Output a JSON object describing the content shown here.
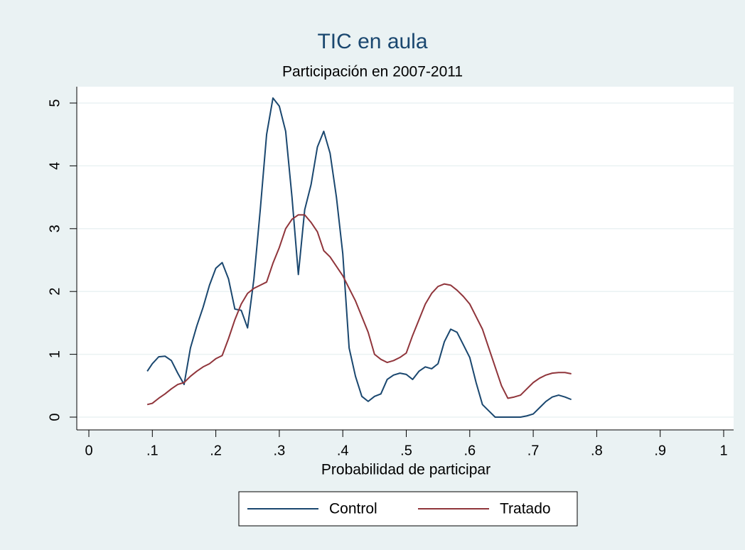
{
  "chart_data": {
    "type": "line",
    "title": "TIC en aula",
    "subtitle": "Participación en 2007-2011",
    "x_label": "Probabilidad de participar",
    "x": [
      0.092,
      0.1,
      0.11,
      0.12,
      0.13,
      0.14,
      0.15,
      0.16,
      0.17,
      0.18,
      0.19,
      0.2,
      0.21,
      0.22,
      0.23,
      0.24,
      0.25,
      0.26,
      0.27,
      0.28,
      0.29,
      0.3,
      0.31,
      0.32,
      0.33,
      0.34,
      0.35,
      0.36,
      0.37,
      0.38,
      0.39,
      0.4,
      0.41,
      0.42,
      0.43,
      0.44,
      0.45,
      0.46,
      0.47,
      0.48,
      0.49,
      0.5,
      0.51,
      0.52,
      0.53,
      0.54,
      0.55,
      0.56,
      0.57,
      0.58,
      0.59,
      0.6,
      0.61,
      0.62,
      0.63,
      0.64,
      0.65,
      0.66,
      0.67,
      0.68,
      0.69,
      0.7,
      0.71,
      0.72,
      0.73,
      0.74,
      0.75,
      0.76
    ],
    "series": [
      {
        "name": "Control",
        "color": "#1a476f",
        "values": [
          0.73,
          0.85,
          0.96,
          0.97,
          0.9,
          0.7,
          0.52,
          1.1,
          1.45,
          1.75,
          2.1,
          2.37,
          2.46,
          2.2,
          1.72,
          1.7,
          1.42,
          2.2,
          3.3,
          4.5,
          5.08,
          4.95,
          4.55,
          3.5,
          2.27,
          3.3,
          3.7,
          4.3,
          4.55,
          4.2,
          3.5,
          2.6,
          1.1,
          0.65,
          0.33,
          0.25,
          0.33,
          0.37,
          0.6,
          0.67,
          0.7,
          0.68,
          0.6,
          0.73,
          0.8,
          0.77,
          0.85,
          1.2,
          1.4,
          1.35,
          1.15,
          0.95,
          0.55,
          0.2,
          0.1,
          0,
          0,
          0,
          0,
          0,
          0.02,
          0.05,
          0.15,
          0.25,
          0.32,
          0.35,
          0.32,
          0.28
        ]
      },
      {
        "name": "Tratado",
        "color": "#90353b",
        "values": [
          0.2,
          0.22,
          0.3,
          0.37,
          0.45,
          0.52,
          0.55,
          0.65,
          0.73,
          0.8,
          0.85,
          0.93,
          0.98,
          1.25,
          1.55,
          1.8,
          1.97,
          2.05,
          2.1,
          2.15,
          2.45,
          2.7,
          3.0,
          3.15,
          3.22,
          3.22,
          3.1,
          2.95,
          2.65,
          2.55,
          2.4,
          2.25,
          2.05,
          1.85,
          1.6,
          1.35,
          1.0,
          0.92,
          0.87,
          0.9,
          0.95,
          1.02,
          1.3,
          1.55,
          1.8,
          1.97,
          2.08,
          2.12,
          2.1,
          2.02,
          1.92,
          1.8,
          1.6,
          1.4,
          1.1,
          0.8,
          0.5,
          0.3,
          0.32,
          0.35,
          0.45,
          0.55,
          0.62,
          0.67,
          0.7,
          0.71,
          0.71,
          0.69
        ]
      }
    ],
    "xlim": [
      0,
      1
    ],
    "xticks": [
      0,
      {
        "value": 0.1,
        "label": ".1"
      },
      {
        "value": 0.2,
        "label": ".2"
      },
      {
        "value": 0.3,
        "label": ".3"
      },
      {
        "value": 0.4,
        "label": ".4"
      },
      {
        "value": 0.5,
        "label": ".5"
      },
      {
        "value": 0.6,
        "label": ".6"
      },
      {
        "value": 0.7,
        "label": ".7"
      },
      {
        "value": 0.8,
        "label": ".8"
      },
      {
        "value": 0.9,
        "label": ".9"
      },
      1
    ],
    "ylim": [
      0,
      5
    ],
    "yticks": [
      0,
      1,
      2,
      3,
      4,
      5
    ],
    "grid": true,
    "legend": "bottom"
  }
}
